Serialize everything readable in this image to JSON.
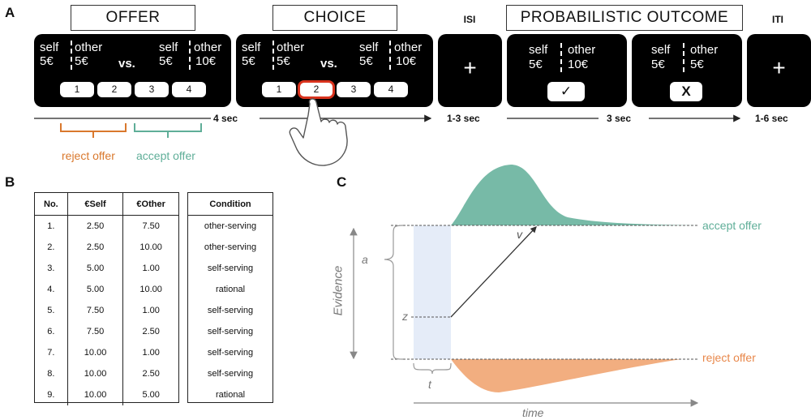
{
  "panels": {
    "a": "A",
    "b": "B",
    "c": "C"
  },
  "headers": {
    "offer": "OFFER",
    "choice": "CHOICE",
    "isi": "ISI",
    "outcome": "PROBABILISTIC OUTCOME",
    "iti": "ITI"
  },
  "screens": {
    "offer": {
      "self_label": "self",
      "other_label": "other",
      "left": {
        "self": "5€",
        "other": "5€"
      },
      "vs": "vs.",
      "right": {
        "self": "5€",
        "other": "10€"
      },
      "buttons": [
        "1",
        "2",
        "3",
        "4"
      ]
    },
    "choice": {
      "self_label": "self",
      "other_label": "other",
      "left": {
        "self": "5€",
        "other": "5€"
      },
      "vs": "vs.",
      "right": {
        "self": "5€",
        "other": "10€"
      },
      "buttons": [
        "1",
        "2",
        "3",
        "4"
      ],
      "selected_button": "2"
    },
    "isi": {
      "symbol": "+"
    },
    "outcome1": {
      "self_label": "self",
      "other_label": "other",
      "self": "5€",
      "other": "10€",
      "feedback": "✓"
    },
    "outcome2": {
      "self_label": "self",
      "other_label": "other",
      "self": "5€",
      "other": "5€",
      "feedback": "X"
    },
    "iti": {
      "symbol": "+"
    }
  },
  "timeline": {
    "offer_choice": "4 sec",
    "isi": "1-3 sec",
    "outcome": "3 sec",
    "iti": "1-6 sec"
  },
  "brackets": {
    "reject": "reject offer",
    "accept": "accept offer",
    "reject_color": "#d9782d",
    "accept_color": "#5fae98"
  },
  "table": {
    "headers": [
      "No.",
      "€Self",
      "€Other"
    ],
    "condition_header": "Condition",
    "rows": [
      {
        "no": "1.",
        "self": "2.50",
        "other": "7.50",
        "condition": "other-serving"
      },
      {
        "no": "2.",
        "self": "2.50",
        "other": "10.00",
        "condition": "other-serving"
      },
      {
        "no": "3.",
        "self": "5.00",
        "other": "1.00",
        "condition": "self-serving"
      },
      {
        "no": "4.",
        "self": "5.00",
        "other": "10.00",
        "condition": "rational"
      },
      {
        "no": "5.",
        "self": "7.50",
        "other": "1.00",
        "condition": "self-serving"
      },
      {
        "no": "6.",
        "self": "7.50",
        "other": "2.50",
        "condition": "self-serving"
      },
      {
        "no": "7.",
        "self": "10.00",
        "other": "1.00",
        "condition": "self-serving"
      },
      {
        "no": "8.",
        "self": "10.00",
        "other": "2.50",
        "condition": "self-serving"
      },
      {
        "no": "9.",
        "self": "10.00",
        "other": "5.00",
        "condition": "rational"
      }
    ]
  },
  "ddm": {
    "accept_label": "accept offer",
    "reject_label": "reject offer",
    "ylabel": "Evidence",
    "xlabel": "time",
    "a": "a",
    "v": "v",
    "z": "z",
    "t": "t",
    "accept_color": "#5fae98",
    "reject_color": "#f0a06a",
    "nondecision_color": "#dce6f5"
  }
}
